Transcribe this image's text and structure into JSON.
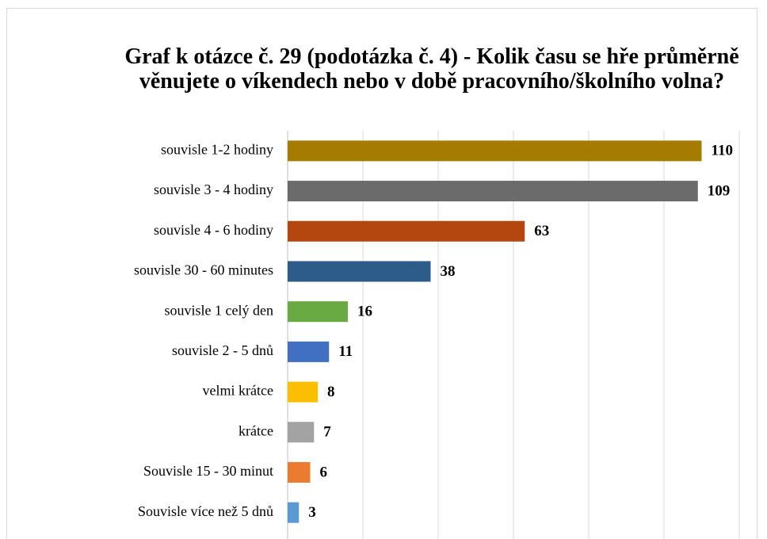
{
  "chart_data": {
    "type": "bar",
    "orientation": "horizontal",
    "title": "Graf k otázce č. 29 (podotázka č. 4) - Kolik času se hře průměrně věnujete o víkendech nebo v době pracovního/školního volna?",
    "categories": [
      "souvisle 1-2 hodiny",
      "souvisle 3 - 4 hodiny",
      "souvisle 4 - 6 hodiny",
      "souvisle 30 - 60 minutes",
      "souvisle 1 celý den",
      "souvisle 2 - 5 dnů",
      "velmi krátce",
      "krátce",
      "Souvisle 15 - 30 minut",
      "Souvisle více než 5 dnů"
    ],
    "values": [
      110,
      109,
      63,
      38,
      16,
      11,
      8,
      7,
      6,
      3
    ],
    "colors": [
      "#a67c00",
      "#6b6b6b",
      "#b3470f",
      "#2d5b8a",
      "#6aaa43",
      "#4170c2",
      "#fcbf00",
      "#a3a3a3",
      "#eb7b30",
      "#5a9ad4"
    ],
    "xlim": [
      0,
      120
    ],
    "xticks": [
      0,
      20,
      40,
      60,
      80,
      100,
      120
    ],
    "grid": true
  }
}
